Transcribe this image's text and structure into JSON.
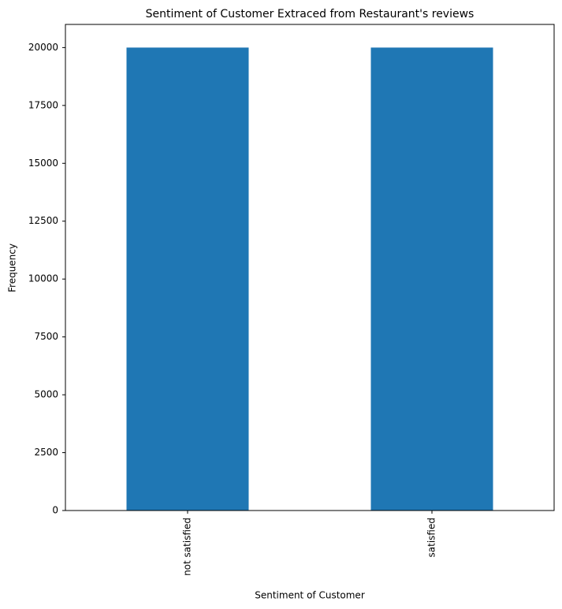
{
  "chart_data": {
    "type": "bar",
    "title": "Sentiment of Customer Extraced from Restaurant's reviews",
    "x_label": "Sentiment of Customer",
    "y_label": "Frequency",
    "categories": [
      "not satisfied",
      "satisfied"
    ],
    "values": [
      20000,
      20000
    ],
    "color": "#1f77b4",
    "ylim": [
      0,
      21000
    ],
    "yticks": [
      0,
      2500,
      5000,
      7500,
      10000,
      12500,
      15000,
      17500,
      20000
    ],
    "grid": false
  }
}
